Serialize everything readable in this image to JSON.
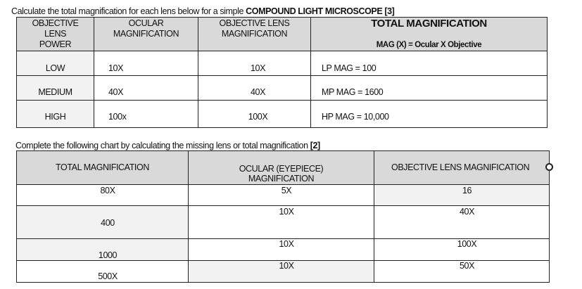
{
  "instructions": {
    "q1_prefix": "Calculate the total magnification for each lens below for a simple ",
    "q1_bold": "COMPOUND LIGHT MICROSCOPE [3]",
    "q2_prefix": "Complete the following chart by calculating the missing lens or total magnification ",
    "q2_bold": "[2]"
  },
  "table1": {
    "headers": {
      "power": [
        "OBJECTIVE",
        "LENS",
        "POWER"
      ],
      "ocular": [
        "OCULAR",
        "MAGNIFICATION"
      ],
      "objective": [
        "OBJECTIVE LENS",
        "MAGNIFICATION"
      ],
      "total": "TOTAL MAGNIFICATION",
      "formula": "MAG (X) =  Ocular X Objective"
    },
    "rows": [
      {
        "power": "LOW",
        "ocular": "10X",
        "objective": "10X",
        "total": "LP MAG = 100"
      },
      {
        "power": "MEDIUM",
        "ocular": "40X",
        "objective": "40X",
        "total": "MP MAG = 1600"
      },
      {
        "power": "HIGH",
        "ocular": "100x",
        "objective": "100X",
        "total": "HP MAG = 10,000"
      }
    ]
  },
  "table2": {
    "headers": {
      "total": "TOTAL MAGNIFICATION",
      "ocular": [
        "OCULAR (EYEPIECE)",
        "MAGNIFICATION"
      ],
      "objective": "OBJECTIVE LENS MAGNIFICATION"
    },
    "rows": [
      {
        "total": "80X",
        "ocular": "5X",
        "objective": "16"
      },
      {
        "total": "400",
        "ocular": "10X",
        "objective": "40X"
      },
      {
        "total": "1000",
        "ocular": "10X",
        "objective": "100X"
      },
      {
        "total": "500X",
        "ocular": "10X",
        "objective": "50X"
      }
    ]
  }
}
